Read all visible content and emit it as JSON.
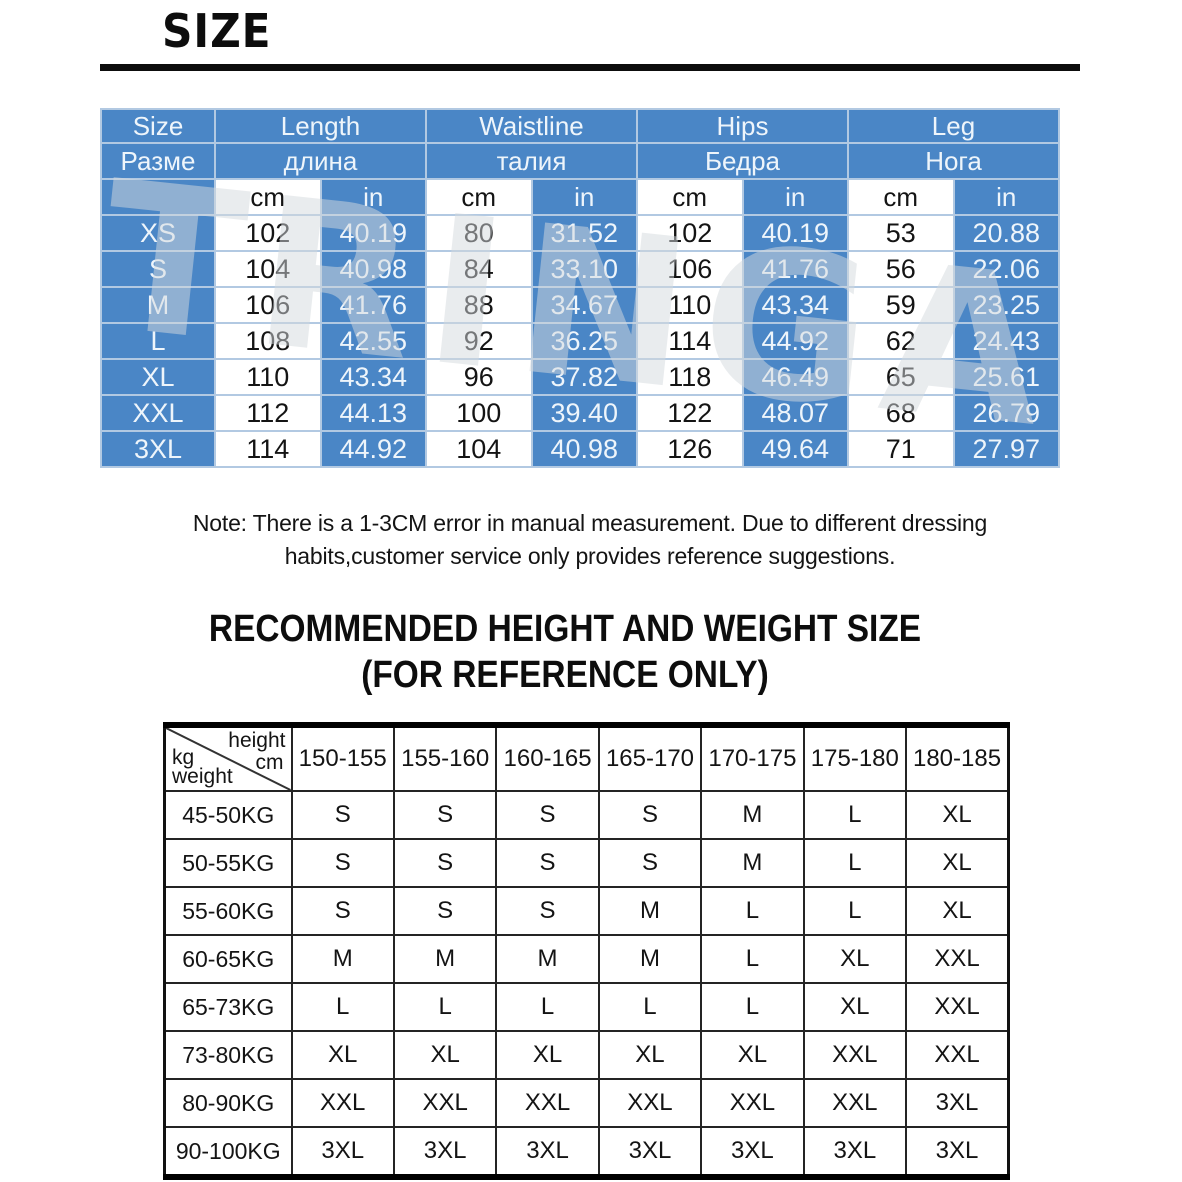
{
  "page": {
    "title": "SIZE",
    "watermark": "TRINGA",
    "note_line1": "Note: There is a 1-3CM error in manual measurement. Due to different dressing",
    "note_line2": "habits,customer service only provides reference suggestions.",
    "heading_line1": "RECOMMENDED HEIGHT AND WEIGHT SIZE",
    "heading_line2": "(FOR REFERENCE ONLY)"
  },
  "colors": {
    "table_blue": "#4a86c6",
    "grid_light_blue": "#b2c9e2",
    "text_dark": "#141414"
  },
  "size_table": {
    "headers_en": [
      "Size",
      "Length",
      "Waistline",
      "Hips",
      "Leg"
    ],
    "headers_ru": [
      "Разме",
      "длина",
      "талия",
      "Бедра",
      "Нога"
    ],
    "unit_cm": "cm",
    "unit_in": "in",
    "rows": [
      {
        "size": "XS",
        "values": [
          "102",
          "40.19",
          "80",
          "31.52",
          "102",
          "40.19",
          "53",
          "20.88"
        ]
      },
      {
        "size": "S",
        "values": [
          "104",
          "40.98",
          "84",
          "33.10",
          "106",
          "41.76",
          "56",
          "22.06"
        ]
      },
      {
        "size": "M",
        "values": [
          "106",
          "41.76",
          "88",
          "34.67",
          "110",
          "43.34",
          "59",
          "23.25"
        ]
      },
      {
        "size": "L",
        "values": [
          "108",
          "42.55",
          "92",
          "36.25",
          "114",
          "44.92",
          "62",
          "24.43"
        ]
      },
      {
        "size": "XL",
        "values": [
          "110",
          "43.34",
          "96",
          "37.82",
          "118",
          "46.49",
          "65",
          "25.61"
        ]
      },
      {
        "size": "XXL",
        "values": [
          "112",
          "44.13",
          "100",
          "39.40",
          "122",
          "48.07",
          "68",
          "26.79"
        ]
      },
      {
        "size": "3XL",
        "values": [
          "114",
          "44.92",
          "104",
          "40.98",
          "126",
          "49.64",
          "71",
          "27.97"
        ]
      }
    ]
  },
  "hw_table": {
    "corner": {
      "height_label": "height",
      "cm_label": "cm",
      "kg_label": "kg",
      "weight_label": "weight"
    },
    "height_cols": [
      "150-155",
      "155-160",
      "160-165",
      "165-170",
      "170-175",
      "175-180",
      "180-185"
    ],
    "rows": [
      {
        "weight": "45-50KG",
        "sizes": [
          "S",
          "S",
          "S",
          "S",
          "M",
          "L",
          "XL"
        ]
      },
      {
        "weight": "50-55KG",
        "sizes": [
          "S",
          "S",
          "S",
          "S",
          "M",
          "L",
          "XL"
        ]
      },
      {
        "weight": "55-60KG",
        "sizes": [
          "S",
          "S",
          "S",
          "M",
          "L",
          "L",
          "XL"
        ]
      },
      {
        "weight": "60-65KG",
        "sizes": [
          "M",
          "M",
          "M",
          "M",
          "L",
          "XL",
          "XXL"
        ]
      },
      {
        "weight": "65-73KG",
        "sizes": [
          "L",
          "L",
          "L",
          "L",
          "L",
          "XL",
          "XXL"
        ]
      },
      {
        "weight": "73-80KG",
        "sizes": [
          "XL",
          "XL",
          "XL",
          "XL",
          "XL",
          "XXL",
          "XXL"
        ]
      },
      {
        "weight": "80-90KG",
        "sizes": [
          "XXL",
          "XXL",
          "XXL",
          "XXL",
          "XXL",
          "XXL",
          "3XL"
        ]
      },
      {
        "weight": "90-100KG",
        "sizes": [
          "3XL",
          "3XL",
          "3XL",
          "3XL",
          "3XL",
          "3XL",
          "3XL"
        ]
      }
    ]
  }
}
